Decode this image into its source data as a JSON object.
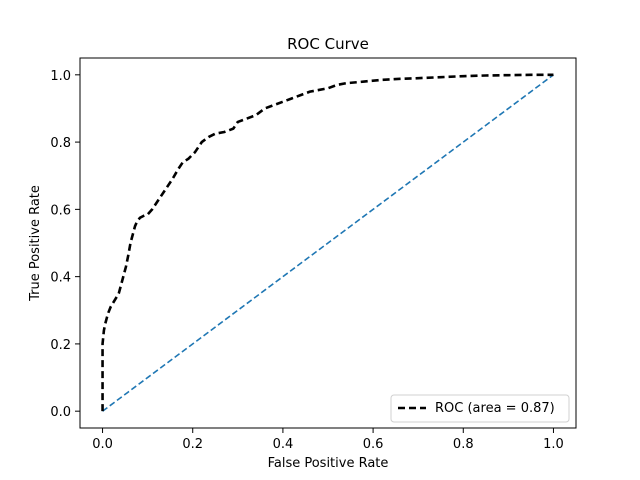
{
  "chart_data": {
    "type": "line",
    "title": "ROC Curve",
    "xlabel": "False Positive Rate",
    "ylabel": "True Positive Rate",
    "xlim": [
      -0.05,
      1.05
    ],
    "ylim": [
      -0.05,
      1.05
    ],
    "x_ticks": [
      0.0,
      0.2,
      0.4,
      0.6,
      0.8,
      1.0
    ],
    "y_ticks": [
      0.0,
      0.2,
      0.4,
      0.6,
      0.8,
      1.0
    ],
    "x_tick_labels": [
      "0.0",
      "0.2",
      "0.4",
      "0.6",
      "0.8",
      "1.0"
    ],
    "y_tick_labels": [
      "0.0",
      "0.2",
      "0.4",
      "0.6",
      "0.8",
      "1.0"
    ],
    "grid": false,
    "legend": {
      "location": "lower-right",
      "entries": [
        "ROC (area = 0.87)"
      ]
    },
    "series": [
      {
        "name": "ROC (area = 0.87)",
        "style": "dashed",
        "color": "#000000",
        "x": [
          0.0,
          0.0,
          0.003,
          0.006,
          0.012,
          0.018,
          0.027,
          0.036,
          0.04,
          0.046,
          0.052,
          0.058,
          0.062,
          0.068,
          0.072,
          0.077,
          0.083,
          0.09,
          0.1,
          0.11,
          0.125,
          0.14,
          0.155,
          0.168,
          0.178,
          0.19,
          0.205,
          0.22,
          0.235,
          0.25,
          0.27,
          0.29,
          0.3,
          0.32,
          0.34,
          0.36,
          0.38,
          0.4,
          0.42,
          0.44,
          0.46,
          0.48,
          0.5,
          0.52,
          0.54,
          0.58,
          0.62,
          0.66,
          0.7,
          0.75,
          0.8,
          0.85,
          0.9,
          0.95,
          1.0
        ],
        "y": [
          0.0,
          0.2,
          0.24,
          0.26,
          0.29,
          0.31,
          0.33,
          0.35,
          0.37,
          0.4,
          0.43,
          0.47,
          0.5,
          0.53,
          0.55,
          0.565,
          0.575,
          0.58,
          0.585,
          0.6,
          0.63,
          0.66,
          0.69,
          0.72,
          0.74,
          0.75,
          0.77,
          0.8,
          0.815,
          0.825,
          0.83,
          0.84,
          0.86,
          0.87,
          0.88,
          0.9,
          0.91,
          0.92,
          0.93,
          0.94,
          0.95,
          0.955,
          0.96,
          0.97,
          0.975,
          0.98,
          0.985,
          0.988,
          0.99,
          0.993,
          0.996,
          0.998,
          0.999,
          1.0,
          1.0
        ]
      },
      {
        "name": "chance diagonal",
        "style": "dashed",
        "color": "#1f77b4",
        "x": [
          0.0,
          1.0
        ],
        "y": [
          0.0,
          1.0
        ]
      }
    ]
  }
}
